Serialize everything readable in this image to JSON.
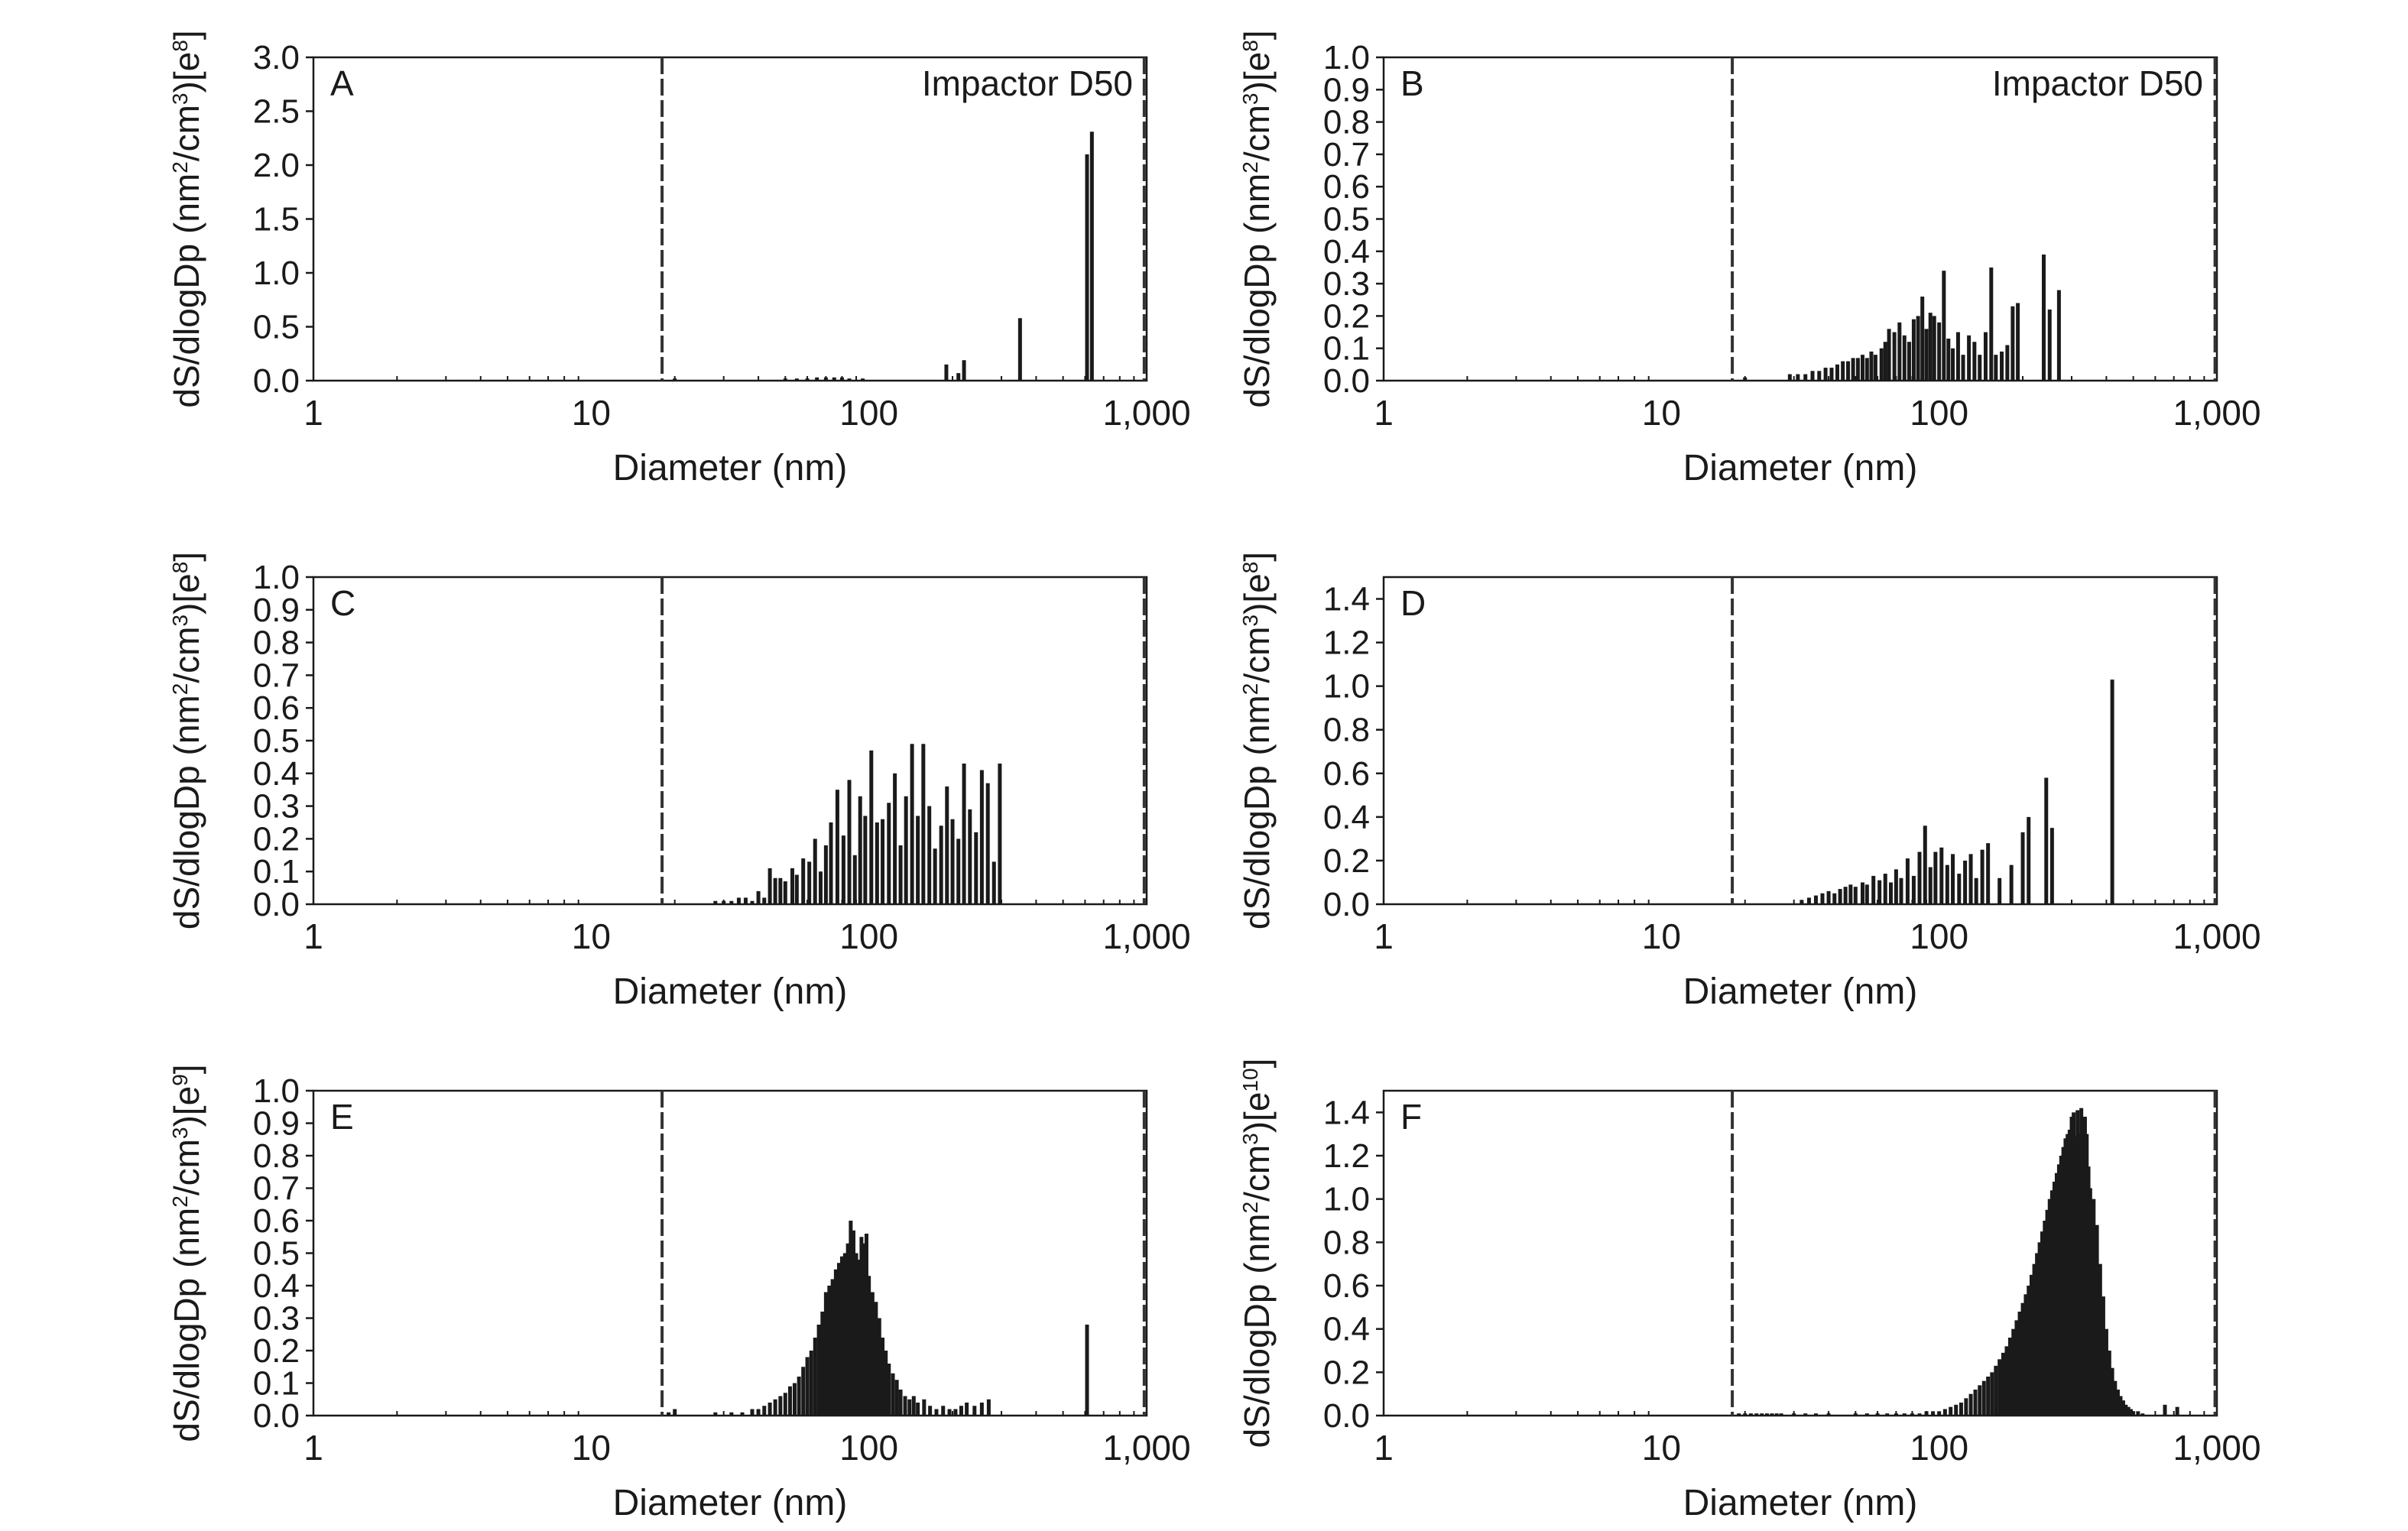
{
  "x_axis_label": "Diameter (nm)",
  "y_axis_prefix": "dS/dlogDp (nm",
  "y_axis_mid": "/cm",
  "y_axis_sup": "2",
  "y_axis_sup3": "3",
  "y_axis_bracket_open": ")[e",
  "y_axis_bracket_close": "]",
  "x_tick_labels": [
    "1",
    "10",
    "100",
    "1,000"
  ],
  "annotation_text": "Impactor D50",
  "colors": {
    "bars": "#1a1a1a",
    "axis": "#1a1a1a",
    "dashed_line": "#333333",
    "background": "#ffffff"
  },
  "chart_data": [
    {
      "panel": "A",
      "type": "bar",
      "x_scale": "log",
      "xlim": [
        1,
        1000
      ],
      "ylim": [
        0,
        3.0
      ],
      "y_ticks": [
        0.0,
        0.5,
        1.0,
        1.5,
        2.0,
        2.5,
        3.0
      ],
      "y_tick_decimals": 1,
      "y_exponent": "8",
      "annotation": "Impactor D50",
      "dashed_lines_x": [
        18,
        980
      ],
      "x": [
        20,
        50,
        55,
        60,
        65,
        70,
        75,
        80,
        85,
        95,
        190,
        210,
        220,
        350,
        610,
        635
      ],
      "values": [
        0.02,
        0.02,
        0.02,
        0.02,
        0.03,
        0.03,
        0.03,
        0.03,
        0.02,
        0.02,
        0.15,
        0.07,
        0.19,
        0.58,
        2.1,
        2.31
      ]
    },
    {
      "panel": "B",
      "type": "bar",
      "x_scale": "log",
      "xlim": [
        1,
        1000
      ],
      "ylim": [
        0,
        1.0
      ],
      "y_ticks": [
        0.0,
        0.1,
        0.2,
        0.3,
        0.4,
        0.5,
        0.6,
        0.7,
        0.8,
        0.9,
        1.0
      ],
      "y_tick_decimals": 1,
      "y_exponent": "8",
      "annotation": "Impactor D50",
      "dashed_lines_x": [
        18,
        985
      ],
      "x": [
        20,
        29,
        31,
        33,
        35,
        37,
        39,
        41,
        43,
        45,
        47,
        49,
        51,
        53,
        55,
        57,
        59,
        62,
        64,
        66,
        69,
        72,
        75,
        78,
        81,
        84,
        87,
        90,
        93,
        96,
        100,
        104,
        108,
        112,
        117,
        122,
        128,
        134,
        140,
        147,
        154,
        160,
        168,
        176,
        184,
        192,
        238,
        250,
        270
      ],
      "values": [
        0.01,
        0.02,
        0.02,
        0.02,
        0.03,
        0.03,
        0.04,
        0.04,
        0.05,
        0.06,
        0.06,
        0.07,
        0.07,
        0.08,
        0.07,
        0.09,
        0.08,
        0.1,
        0.12,
        0.16,
        0.15,
        0.18,
        0.14,
        0.12,
        0.19,
        0.2,
        0.26,
        0.16,
        0.21,
        0.2,
        0.18,
        0.34,
        0.13,
        0.1,
        0.15,
        0.08,
        0.14,
        0.12,
        0.08,
        0.15,
        0.35,
        0.08,
        0.09,
        0.11,
        0.23,
        0.24,
        0.39,
        0.22,
        0.28
      ]
    },
    {
      "panel": "C",
      "type": "bar",
      "x_scale": "log",
      "xlim": [
        1,
        1000
      ],
      "ylim": [
        0,
        1.0
      ],
      "y_ticks": [
        0.0,
        0.1,
        0.2,
        0.3,
        0.4,
        0.5,
        0.6,
        0.7,
        0.8,
        0.9,
        1.0
      ],
      "y_tick_decimals": 1,
      "y_exponent": "8",
      "dashed_lines_x": [
        18,
        980
      ],
      "x": [
        28,
        30,
        32,
        34,
        36,
        38,
        40,
        42,
        44,
        46,
        48,
        50,
        53,
        55,
        58,
        61,
        64,
        67,
        70,
        73,
        77,
        81,
        85,
        89,
        93,
        97,
        102,
        107,
        112,
        118,
        124,
        130,
        136,
        143,
        150,
        157,
        165,
        173,
        182,
        191,
        200,
        210,
        220,
        231,
        243,
        255,
        268,
        282,
        296
      ],
      "values": [
        0.01,
        0.01,
        0.01,
        0.02,
        0.02,
        0.01,
        0.04,
        0.02,
        0.11,
        0.08,
        0.08,
        0.07,
        0.11,
        0.09,
        0.14,
        0.13,
        0.2,
        0.1,
        0.18,
        0.25,
        0.35,
        0.21,
        0.38,
        0.15,
        0.33,
        0.27,
        0.47,
        0.25,
        0.26,
        0.31,
        0.4,
        0.18,
        0.33,
        0.49,
        0.27,
        0.49,
        0.3,
        0.17,
        0.24,
        0.36,
        0.26,
        0.2,
        0.43,
        0.29,
        0.22,
        0.41,
        0.37,
        0.13,
        0.43
      ]
    },
    {
      "panel": "D",
      "type": "bar",
      "x_scale": "log",
      "xlim": [
        1,
        1000
      ],
      "ylim": [
        0,
        1.5
      ],
      "y_ticks": [
        0.0,
        0.2,
        0.4,
        0.6,
        0.8,
        1.0,
        1.2,
        1.4
      ],
      "y_tick_decimals": 1,
      "y_exponent": "8",
      "dashed_lines_x": [
        18,
        985
      ],
      "x": [
        32,
        34,
        36,
        38,
        40,
        42,
        44,
        46,
        48,
        50,
        53,
        55,
        58,
        61,
        64,
        67,
        70,
        73,
        77,
        81,
        85,
        89,
        93,
        97,
        102,
        107,
        112,
        118,
        124,
        130,
        136,
        143,
        150,
        165,
        182,
        200,
        210,
        243,
        255,
        420
      ],
      "values": [
        0.02,
        0.03,
        0.04,
        0.05,
        0.06,
        0.05,
        0.07,
        0.08,
        0.09,
        0.08,
        0.1,
        0.09,
        0.13,
        0.11,
        0.14,
        0.1,
        0.16,
        0.12,
        0.21,
        0.13,
        0.24,
        0.36,
        0.17,
        0.24,
        0.26,
        0.18,
        0.23,
        0.14,
        0.2,
        0.23,
        0.12,
        0.25,
        0.28,
        0.12,
        0.18,
        0.33,
        0.4,
        0.58,
        0.35,
        1.03
      ]
    },
    {
      "panel": "E",
      "type": "bar",
      "x_scale": "log",
      "xlim": [
        1,
        1000
      ],
      "ylim": [
        0,
        1.0
      ],
      "y_ticks": [
        0.0,
        0.1,
        0.2,
        0.3,
        0.4,
        0.5,
        0.6,
        0.7,
        0.8,
        0.9,
        1.0
      ],
      "y_tick_decimals": 1,
      "y_exponent": "9",
      "dashed_lines_x": [
        18,
        980
      ],
      "x": [
        19,
        20,
        28,
        32,
        35,
        38,
        40,
        42,
        44,
        46,
        48,
        50,
        52,
        54,
        56,
        58,
        60,
        62,
        64,
        66,
        68,
        70,
        72,
        74,
        76,
        78,
        80,
        82,
        84,
        86,
        88,
        90,
        92,
        94,
        96,
        98,
        100,
        103,
        106,
        109,
        112,
        115,
        118,
        122,
        126,
        130,
        135,
        140,
        145,
        150,
        158,
        166,
        175,
        185,
        195,
        205,
        215,
        225,
        240,
        255,
        270,
        610
      ],
      "values": [
        0.01,
        0.02,
        0.01,
        0.01,
        0.01,
        0.02,
        0.02,
        0.03,
        0.04,
        0.05,
        0.06,
        0.07,
        0.09,
        0.1,
        0.12,
        0.15,
        0.18,
        0.2,
        0.24,
        0.28,
        0.32,
        0.38,
        0.4,
        0.42,
        0.45,
        0.47,
        0.49,
        0.5,
        0.53,
        0.6,
        0.57,
        0.5,
        0.48,
        0.55,
        0.53,
        0.56,
        0.43,
        0.38,
        0.35,
        0.3,
        0.24,
        0.2,
        0.16,
        0.13,
        0.11,
        0.08,
        0.06,
        0.05,
        0.06,
        0.04,
        0.05,
        0.03,
        0.02,
        0.03,
        0.02,
        0.02,
        0.03,
        0.04,
        0.03,
        0.04,
        0.05,
        0.28
      ]
    },
    {
      "panel": "F",
      "type": "bar",
      "x_scale": "log",
      "xlim": [
        1,
        1000
      ],
      "ylim": [
        0,
        1.5
      ],
      "y_ticks": [
        0.0,
        0.2,
        0.4,
        0.6,
        0.8,
        1.0,
        1.2,
        1.4
      ],
      "y_tick_decimals": 1,
      "y_exponent": "10",
      "dashed_lines_x": [
        18,
        985
      ],
      "x": [
        19,
        20,
        21,
        22,
        23,
        24,
        25,
        26,
        27,
        30,
        33,
        36,
        40,
        50,
        55,
        60,
        65,
        70,
        75,
        80,
        85,
        90,
        95,
        100,
        105,
        110,
        115,
        120,
        125,
        130,
        135,
        140,
        145,
        150,
        155,
        160,
        165,
        170,
        175,
        180,
        185,
        190,
        195,
        200,
        205,
        210,
        215,
        220,
        225,
        230,
        235,
        240,
        245,
        250,
        255,
        260,
        265,
        270,
        275,
        280,
        285,
        290,
        295,
        300,
        305,
        310,
        315,
        320,
        325,
        330,
        335,
        340,
        345,
        350,
        360,
        370,
        380,
        390,
        400,
        410,
        420,
        430,
        440,
        450,
        460,
        470,
        480,
        490,
        500,
        520,
        540,
        650,
        720
      ],
      "values": [
        0.01,
        0.01,
        0.01,
        0.01,
        0.01,
        0.01,
        0.01,
        0.01,
        0.01,
        0.01,
        0.01,
        0.01,
        0.01,
        0.01,
        0.01,
        0.01,
        0.01,
        0.01,
        0.01,
        0.01,
        0.01,
        0.02,
        0.02,
        0.02,
        0.03,
        0.04,
        0.05,
        0.06,
        0.08,
        0.1,
        0.12,
        0.14,
        0.16,
        0.18,
        0.2,
        0.23,
        0.26,
        0.29,
        0.32,
        0.36,
        0.4,
        0.44,
        0.48,
        0.52,
        0.56,
        0.6,
        0.65,
        0.7,
        0.75,
        0.8,
        0.85,
        0.9,
        0.95,
        1.0,
        1.04,
        1.08,
        1.12,
        1.16,
        1.2,
        1.24,
        1.28,
        1.3,
        1.32,
        1.38,
        1.4,
        1.29,
        1.41,
        1.3,
        1.42,
        1.2,
        1.38,
        1.3,
        1.15,
        1.05,
        1.0,
        0.88,
        0.7,
        0.55,
        0.4,
        0.3,
        0.22,
        0.16,
        0.12,
        0.09,
        0.07,
        0.05,
        0.04,
        0.03,
        0.02,
        0.02,
        0.01,
        0.05,
        0.04
      ]
    }
  ]
}
